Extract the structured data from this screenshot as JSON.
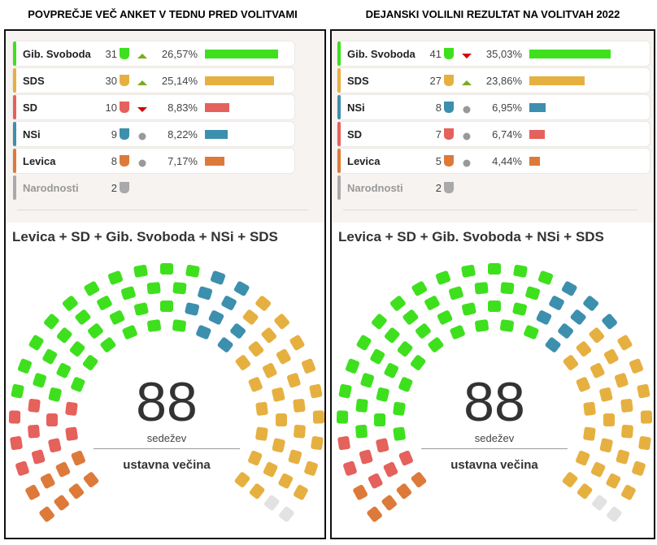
{
  "panels": [
    {
      "title": "POVPREČJE VEČ ANKET V TEDNU PRED VOLITVAMI",
      "coalition": "Levica + SD + Gib. Svoboda + NSi + SDS",
      "seats_total": "88",
      "seats_label": "sedežev",
      "majority_label": "ustavna večina",
      "parties": [
        {
          "name": "Gib. Svoboda",
          "seats": "31",
          "trend": "up",
          "pct": "26,57%",
          "value": 26.57,
          "color": "#3ee01e"
        },
        {
          "name": "SDS",
          "seats": "30",
          "trend": "up",
          "pct": "25,14%",
          "value": 25.14,
          "color": "#e6b041"
        },
        {
          "name": "SD",
          "seats": "10",
          "trend": "down",
          "pct": "8,83%",
          "value": 8.83,
          "color": "#e5615b"
        },
        {
          "name": "NSi",
          "seats": "9",
          "trend": "same",
          "pct": "8,22%",
          "value": 8.22,
          "color": "#3d8fae"
        },
        {
          "name": "Levica",
          "seats": "8",
          "trend": "same",
          "pct": "7,17%",
          "value": 7.17,
          "color": "#dd7a3a"
        },
        {
          "name": "Narodnosti",
          "seats": "2",
          "color": "#a9a9ab"
        }
      ],
      "seat_order": [
        "Levica",
        "SD",
        "Gib. Svoboda",
        "NSi",
        "SDS",
        "Narodnosti"
      ]
    },
    {
      "title": "DEJANSKI VOLILNI REZULTAT NA VOLITVAH 2022",
      "coalition": "Levica + SD + Gib. Svoboda + NSi + SDS",
      "seats_total": "88",
      "seats_label": "sedežev",
      "majority_label": "ustavna večina",
      "parties": [
        {
          "name": "Gib. Svoboda",
          "seats": "41",
          "trend": "down",
          "pct": "35,03%",
          "value": 35.03,
          "color": "#3ee01e"
        },
        {
          "name": "SDS",
          "seats": "27",
          "trend": "up",
          "pct": "23,86%",
          "value": 23.86,
          "color": "#e6b041"
        },
        {
          "name": "NSi",
          "seats": "8",
          "trend": "same",
          "pct": "6,95%",
          "value": 6.95,
          "color": "#3d8fae"
        },
        {
          "name": "SD",
          "seats": "7",
          "trend": "same",
          "pct": "6,74%",
          "value": 6.74,
          "color": "#e5615b"
        },
        {
          "name": "Levica",
          "seats": "5",
          "trend": "same",
          "pct": "4,44%",
          "value": 4.44,
          "color": "#dd7a3a"
        },
        {
          "name": "Narodnosti",
          "seats": "2",
          "color": "#a9a9ab"
        }
      ],
      "seat_order": [
        "Levica",
        "SD",
        "Gib. Svoboda",
        "NSi",
        "SDS",
        "Narodnosti"
      ]
    }
  ],
  "trend_colors": {
    "up": "#7aab1f",
    "down": "#d40000",
    "same": "#999999"
  },
  "excluded_seat_color": "#e2e2e2"
}
